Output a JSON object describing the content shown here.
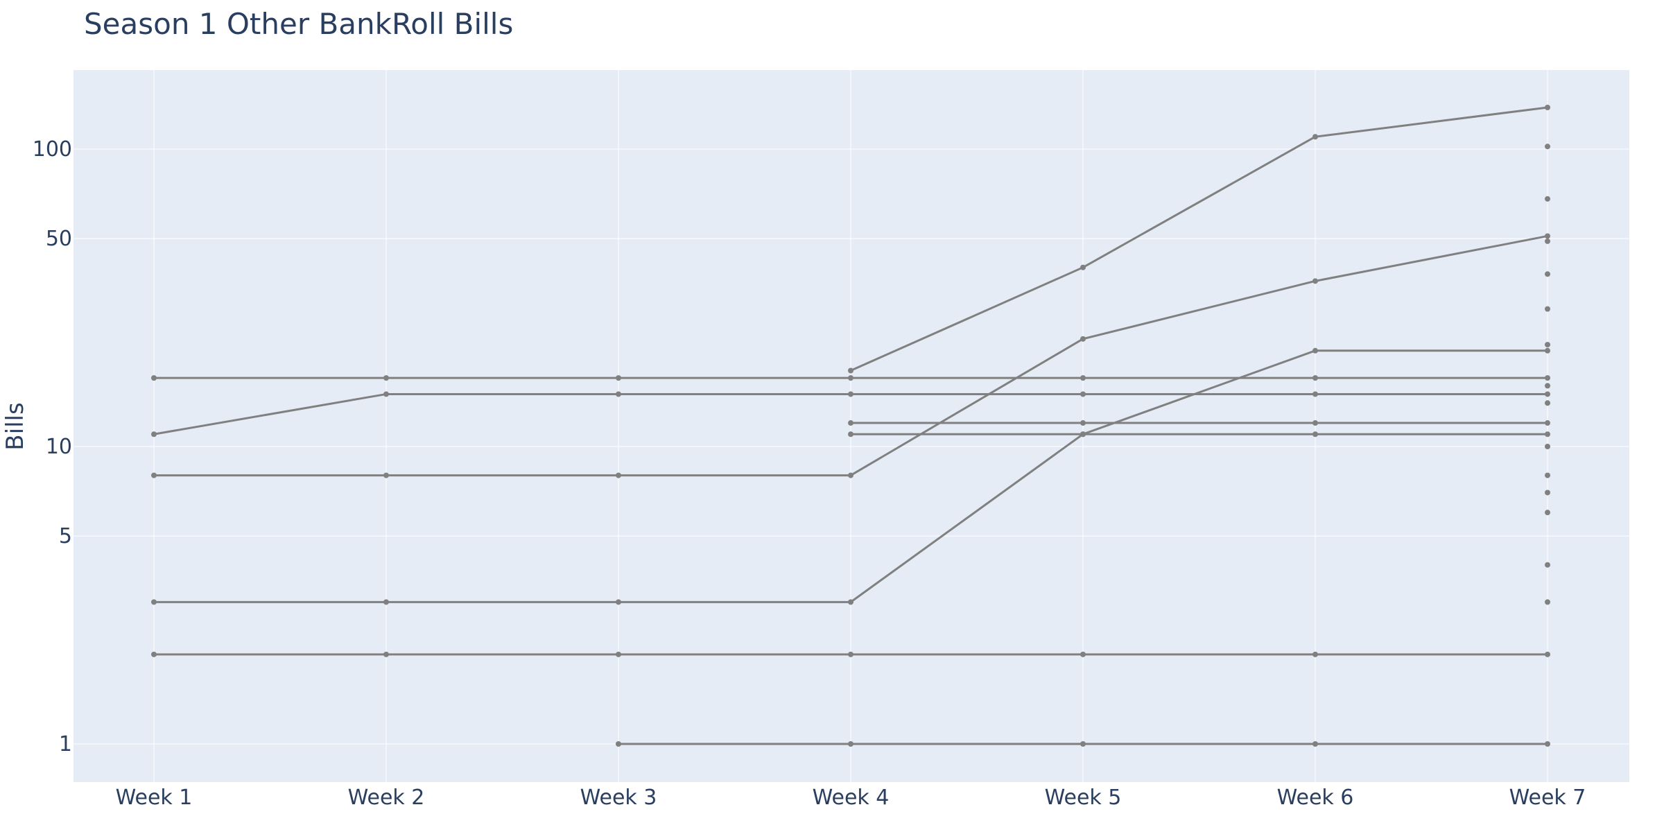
{
  "chart_data": {
    "type": "line",
    "title": "Season 1 Other BankRoll Bills",
    "xlabel": "",
    "ylabel": "Bills",
    "y_scale": "log",
    "ylim": [
      0.8,
      200
    ],
    "grid": true,
    "legend": "none",
    "categories": [
      "Week 1",
      "Week 2",
      "Week 3",
      "Week 4",
      "Week 5",
      "Week 6",
      "Week 7"
    ],
    "yticks": [
      {
        "value": 1,
        "label": "1"
      },
      {
        "value": 5,
        "label": "5"
      },
      {
        "value": 10,
        "label": "10"
      },
      {
        "value": 50,
        "label": "50"
      },
      {
        "value": 100,
        "label": "100"
      }
    ],
    "colors": {
      "plot_bg": "#e5ecf6",
      "grid": "#ffffff",
      "series": "#808080",
      "text": "#2a3f5f"
    },
    "series": [
      {
        "values": [
          null,
          null,
          null,
          18,
          40,
          110,
          138
        ]
      },
      {
        "values": [
          null,
          null,
          null,
          null,
          null,
          null,
          102
        ]
      },
      {
        "values": [
          null,
          null,
          null,
          null,
          null,
          null,
          68
        ]
      },
      {
        "values": [
          8,
          8,
          8,
          8,
          23,
          36,
          51
        ]
      },
      {
        "values": [
          null,
          null,
          null,
          null,
          null,
          null,
          49
        ]
      },
      {
        "values": [
          null,
          null,
          null,
          null,
          null,
          null,
          38
        ]
      },
      {
        "values": [
          null,
          null,
          null,
          null,
          null,
          null,
          29
        ]
      },
      {
        "values": [
          3,
          3,
          3,
          3,
          11,
          21,
          21
        ]
      },
      {
        "values": [
          null,
          null,
          null,
          null,
          null,
          null,
          22
        ]
      },
      {
        "values": [
          17,
          17,
          17,
          17,
          17,
          17,
          17
        ]
      },
      {
        "values": [
          null,
          null,
          null,
          null,
          null,
          null,
          16
        ]
      },
      {
        "values": [
          11,
          15,
          15,
          15,
          15,
          15,
          15
        ]
      },
      {
        "values": [
          null,
          null,
          null,
          null,
          null,
          null,
          14
        ]
      },
      {
        "values": [
          null,
          null,
          null,
          12,
          12,
          12,
          12
        ]
      },
      {
        "values": [
          null,
          null,
          null,
          11,
          11,
          11,
          11
        ]
      },
      {
        "values": [
          null,
          null,
          null,
          null,
          null,
          null,
          10
        ]
      },
      {
        "values": [
          null,
          null,
          null,
          null,
          null,
          null,
          8
        ]
      },
      {
        "values": [
          null,
          null,
          null,
          null,
          null,
          null,
          7
        ]
      },
      {
        "values": [
          null,
          null,
          null,
          null,
          null,
          null,
          6
        ]
      },
      {
        "values": [
          null,
          null,
          null,
          null,
          null,
          null,
          4
        ]
      },
      {
        "values": [
          null,
          null,
          null,
          null,
          null,
          null,
          3
        ]
      },
      {
        "values": [
          2,
          2,
          2,
          2,
          2,
          2,
          2
        ]
      },
      {
        "values": [
          null,
          null,
          1,
          1,
          1,
          1,
          1
        ]
      }
    ]
  }
}
